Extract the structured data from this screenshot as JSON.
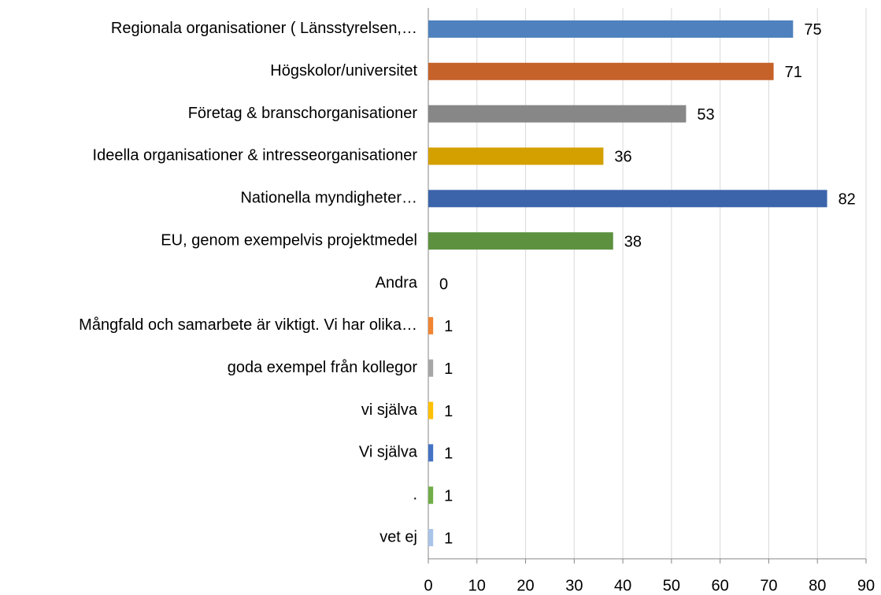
{
  "chart_data": {
    "type": "barh",
    "categories": [
      "Regionala organisationer ( Länsstyrelsen,…",
      "Högskolor/universitet",
      "Företag & branschorganisationer",
      "Ideella organisationer & intresseorganisationer",
      "Nationella myndigheter…",
      "EU, genom exempelvis projektmedel",
      "Andra",
      "Mångfald och samarbete är viktigt. Vi har olika…",
      "goda exempel från kollegor",
      "vi själva",
      "Vi själva",
      ".",
      "vet ej"
    ],
    "values": [
      75,
      71,
      53,
      36,
      82,
      38,
      0,
      1,
      1,
      1,
      1,
      1,
      1
    ],
    "colors": [
      "#4e81bd",
      "#c5622a",
      "#878787",
      "#d4a000",
      "#3c64ab",
      "#5d9140",
      "#4e81bd",
      "#f08532",
      "#a6a6a6",
      "#ffc000",
      "#4472c4",
      "#70ad47",
      "#a9c4e8"
    ],
    "xlim": [
      0,
      90
    ],
    "xticks": [
      0,
      10,
      20,
      30,
      40,
      50,
      60,
      70,
      80,
      90
    ],
    "grid": true
  }
}
